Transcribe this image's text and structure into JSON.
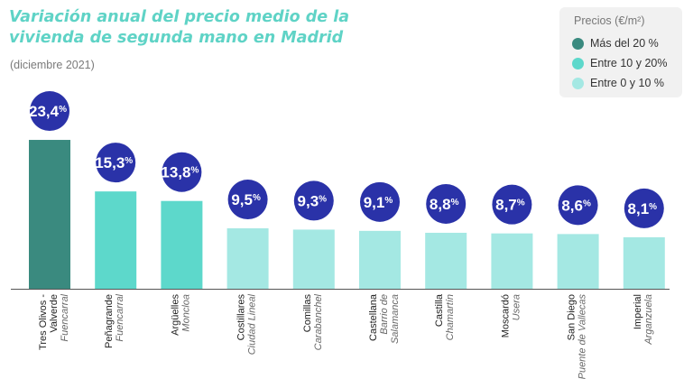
{
  "chart_data": {
    "type": "bar",
    "title": "Variación anual del precio medio de la vivienda de segunda mano en Madrid",
    "subtitle": "(diciembre 2021)",
    "legend": {
      "title": "Precios (€/m²)",
      "items": [
        {
          "label": "Más del 20 %",
          "color": "#3a8a7f"
        },
        {
          "label": "Entre 10 y 20%",
          "color": "#5dd8cb"
        },
        {
          "label": "Entre 0 y 10 %",
          "color": "#a4e8e3"
        }
      ]
    },
    "ylim": [
      0,
      25
    ],
    "bubble_color": "#2a32a8",
    "categories": [
      {
        "name": "Tres Olivos - Valverde",
        "district": "Fuencarral",
        "value": 23.4,
        "value_main": "23,4",
        "value_unit": "%",
        "color": "#3a8a7f"
      },
      {
        "name": "Peñagrande",
        "district": "Fuencarral",
        "value": 15.3,
        "value_main": "15,3",
        "value_unit": "%",
        "color": "#5dd8cb"
      },
      {
        "name": "Argüelles",
        "district": "Moncloa",
        "value": 13.8,
        "value_main": "13,8",
        "value_unit": "%",
        "color": "#5dd8cb"
      },
      {
        "name": "Costillares",
        "district": "Ciudad Lineal",
        "value": 9.5,
        "value_main": "9,5",
        "value_unit": "%",
        "color": "#a4e8e3"
      },
      {
        "name": "Comillas",
        "district": "Carabanchel",
        "value": 9.3,
        "value_main": "9,3",
        "value_unit": "%",
        "color": "#a4e8e3"
      },
      {
        "name": "Castellana",
        "district": "Barrio de Salamanca",
        "value": 9.1,
        "value_main": "9,1",
        "value_unit": "%",
        "color": "#a4e8e3"
      },
      {
        "name": "Castilla",
        "district": "Chamartín",
        "value": 8.8,
        "value_main": "8,8",
        "value_unit": "%",
        "color": "#a4e8e3"
      },
      {
        "name": "Moscardó",
        "district": "Usera",
        "value": 8.7,
        "value_main": "8,7",
        "value_unit": "%",
        "color": "#a4e8e3"
      },
      {
        "name": "San Diego",
        "district": "Puente de Vallecas",
        "value": 8.6,
        "value_main": "8,6",
        "value_unit": "%",
        "color": "#a4e8e3"
      },
      {
        "name": "Imperial",
        "district": "Arganzuela",
        "value": 8.1,
        "value_main": "8,1",
        "value_unit": "%",
        "color": "#a4e8e3"
      }
    ]
  }
}
